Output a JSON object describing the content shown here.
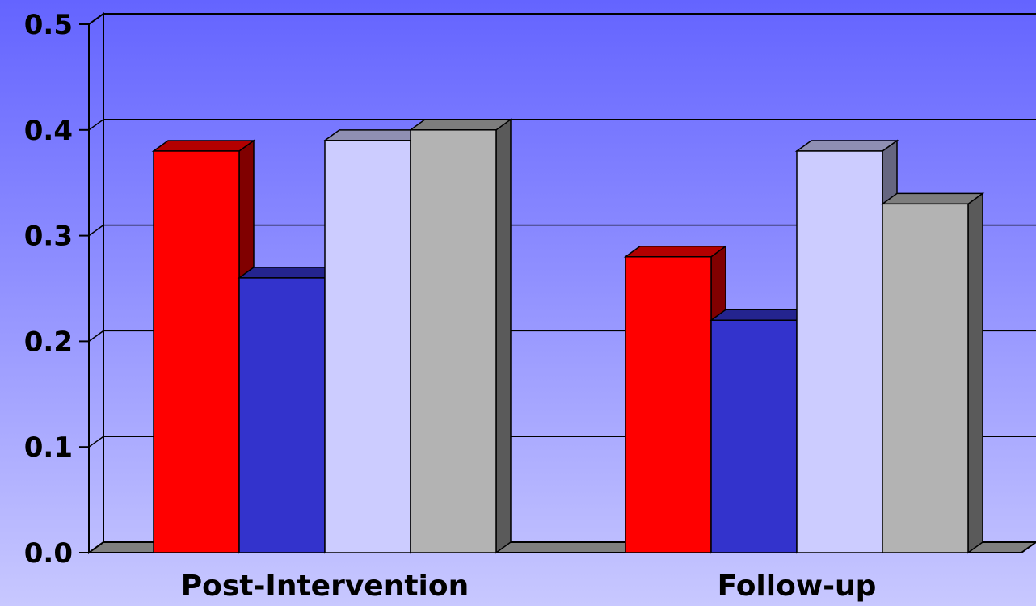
{
  "chart_data": {
    "type": "bar",
    "title": "",
    "xlabel": "",
    "ylabel": "",
    "categories": [
      "Post-Intervention",
      "Follow-up"
    ],
    "series": [
      {
        "values": [
          0.38,
          0.28
        ],
        "color": "#ff0000"
      },
      {
        "values": [
          0.26,
          0.22
        ],
        "color": "#3333cc"
      },
      {
        "values": [
          0.39,
          0.38
        ],
        "color": "#ccccff"
      },
      {
        "values": [
          0.4,
          0.33
        ],
        "color": "#b3b3b3"
      }
    ],
    "ylim": [
      0,
      0.5
    ],
    "yticks": [
      "0.0",
      "0.1",
      "0.2",
      "0.3",
      "0.4",
      "0.5"
    ],
    "grid": true,
    "legend": "none",
    "style": "3d"
  }
}
